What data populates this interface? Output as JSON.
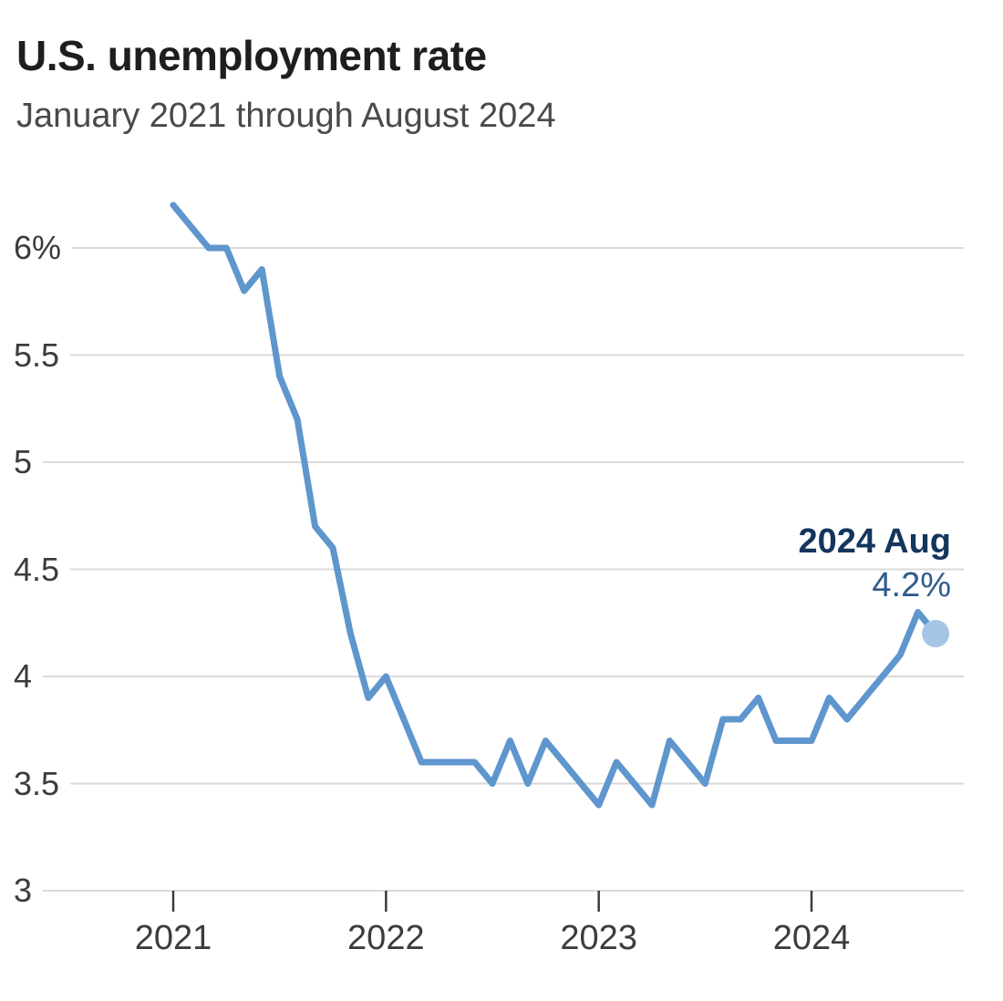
{
  "header": {
    "title": "U.S. unemployment rate",
    "subtitle": "January 2021 through August 2024"
  },
  "annotation": {
    "label": "2024 Aug",
    "value": "4.2%"
  },
  "chart_data": {
    "type": "line",
    "title": "U.S. unemployment rate",
    "subtitle": "January 2021 through August 2024",
    "unit": "percent",
    "x_months": [
      "Jan 2021",
      "Feb 2021",
      "Mar 2021",
      "Apr 2021",
      "May 2021",
      "Jun 2021",
      "Jul 2021",
      "Aug 2021",
      "Sep 2021",
      "Oct 2021",
      "Nov 2021",
      "Dec 2021",
      "Jan 2022",
      "Feb 2022",
      "Mar 2022",
      "Apr 2022",
      "May 2022",
      "Jun 2022",
      "Jul 2022",
      "Aug 2022",
      "Sep 2022",
      "Oct 2022",
      "Nov 2022",
      "Dec 2022",
      "Jan 2023",
      "Feb 2023",
      "Mar 2023",
      "Apr 2023",
      "May 2023",
      "Jun 2023",
      "Jul 2023",
      "Aug 2023",
      "Sep 2023",
      "Oct 2023",
      "Nov 2023",
      "Dec 2023",
      "Jan 2024",
      "Feb 2024",
      "Mar 2024",
      "Apr 2024",
      "May 2024",
      "Jun 2024",
      "Jul 2024",
      "Aug 2024"
    ],
    "series": [
      {
        "name": "U.S. unemployment rate (%)",
        "values": [
          6.2,
          6.1,
          6.0,
          6.0,
          5.8,
          5.9,
          5.4,
          5.2,
          4.7,
          4.6,
          4.2,
          3.9,
          4.0,
          3.8,
          3.6,
          3.6,
          3.6,
          3.6,
          3.5,
          3.7,
          3.5,
          3.7,
          3.6,
          3.5,
          3.4,
          3.6,
          3.5,
          3.4,
          3.7,
          3.6,
          3.5,
          3.8,
          3.8,
          3.9,
          3.7,
          3.7,
          3.7,
          3.9,
          3.8,
          3.9,
          4.0,
          4.1,
          4.3,
          4.2
        ]
      }
    ],
    "end_point": {
      "label": "2024 Aug",
      "value": 4.2,
      "display": "4.2%"
    },
    "x_ticks": [
      {
        "month_index": 0,
        "label": "2021"
      },
      {
        "month_index": 12,
        "label": "2022"
      },
      {
        "month_index": 24,
        "label": "2023"
      },
      {
        "month_index": 36,
        "label": "2024"
      }
    ],
    "y_ticks": [
      {
        "value": 6,
        "label": "6%"
      },
      {
        "value": 5.5,
        "label": "5.5"
      },
      {
        "value": 5,
        "label": "5"
      },
      {
        "value": 4.5,
        "label": "4.5"
      },
      {
        "value": 4,
        "label": "4"
      },
      {
        "value": 3.5,
        "label": "3.5"
      },
      {
        "value": 3,
        "label": "3"
      }
    ],
    "ylim": [
      3,
      6.45
    ],
    "grid": "horizontal",
    "legend": "none",
    "colors": {
      "line": "#5e96cd",
      "end_dot": "#a6c5e6",
      "grid": "#d9d9d9",
      "tick": "#3c3c3c",
      "axis_text": "#3c3c3c",
      "annotation_label": "#14355c",
      "annotation_value": "#2f5c8c"
    }
  }
}
